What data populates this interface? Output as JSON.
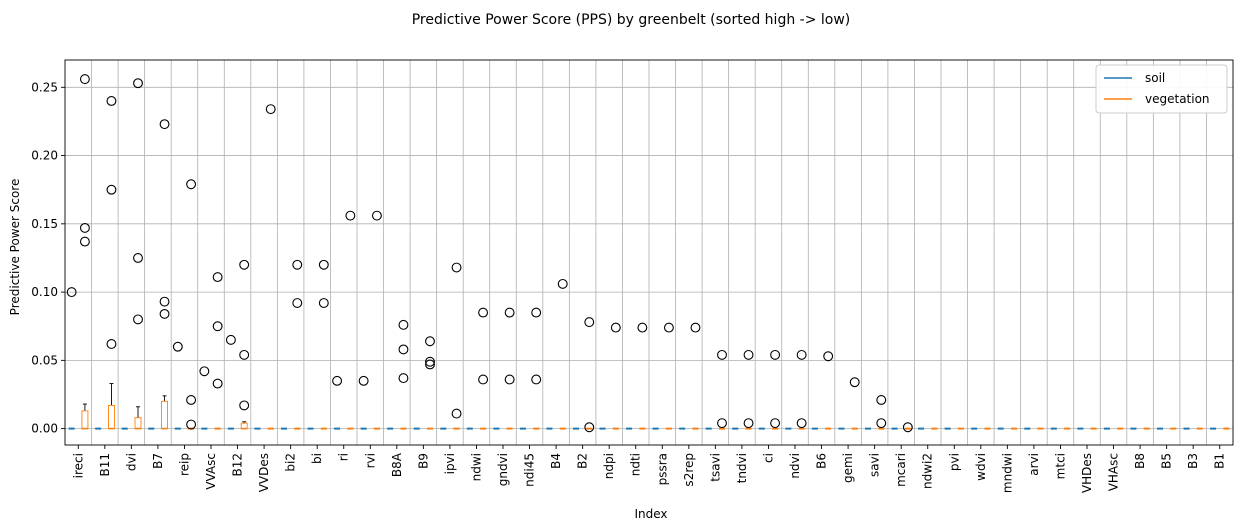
{
  "chart_data": {
    "type": "boxplot",
    "title": "Predictive Power Score (PPS) by greenbelt (sorted high -> low)",
    "xlabel": "Index",
    "ylabel": "Predictive Power Score",
    "ylim": [
      -0.012,
      0.27
    ],
    "yticks": [
      0.0,
      0.05,
      0.1,
      0.15,
      0.2,
      0.25
    ],
    "ytick_labels": [
      "0.00",
      "0.05",
      "0.10",
      "0.15",
      "0.20",
      "0.25"
    ],
    "grid": true,
    "legend_position": "top-right",
    "categories": [
      "ireci",
      "B11",
      "dvi",
      "B7",
      "reip",
      "VVAsc",
      "B12",
      "VVDes",
      "bi2",
      "bi",
      "ri",
      "rvi",
      "B8A",
      "B9",
      "ipvi",
      "ndwi",
      "gndvi",
      "ndi45",
      "B4",
      "B2",
      "ndpi",
      "ndti",
      "pssra",
      "s2rep",
      "tsavi",
      "tndvi",
      "ci",
      "ndvi",
      "B6",
      "gemi",
      "savi",
      "mcari",
      "ndwi2",
      "pvi",
      "wdvi",
      "mndwi",
      "arvi",
      "mtci",
      "VHDes",
      "VHAsc",
      "B8",
      "B5",
      "B3",
      "B1"
    ],
    "series": [
      {
        "name": "soil",
        "color": "#1f77b4",
        "outliers": [
          [
            0.1
          ],
          [],
          [],
          [],
          [
            0.06
          ],
          [
            0.042
          ],
          [
            0.065
          ],
          [],
          [],
          [],
          [
            0.035
          ],
          [
            0.035
          ],
          [],
          [],
          [],
          [],
          [],
          [],
          [],
          [],
          [],
          [],
          [],
          [],
          [],
          [],
          [],
          [],
          [],
          [],
          [],
          [],
          [],
          [],
          [],
          [],
          [],
          [],
          [],
          [],
          [],
          [],
          [],
          []
        ]
      },
      {
        "name": "vegetation",
        "color": "#ff7f0e",
        "boxes": [
          [
            0,
            0,
            0,
            0.013,
            0.018
          ],
          [
            0,
            0,
            0,
            0.017,
            0.033
          ],
          [
            0,
            0,
            0,
            0.008,
            0.016
          ],
          [
            0,
            0,
            0,
            0.02,
            0.024
          ],
          null,
          null,
          [
            0,
            0,
            0,
            0.004,
            0.005
          ],
          null,
          null,
          null,
          null,
          null,
          null,
          null,
          null,
          null,
          null,
          null,
          null,
          null,
          null,
          null,
          null,
          null,
          null,
          null,
          null,
          null,
          null,
          null,
          null,
          null,
          null,
          null,
          null,
          null,
          null,
          null,
          null,
          null,
          null,
          null,
          null,
          null
        ],
        "outliers": [
          [
            0.256,
            0.147,
            0.137
          ],
          [
            0.24,
            0.175,
            0.062
          ],
          [
            0.253,
            0.125,
            0.08
          ],
          [
            0.223,
            0.093,
            0.084
          ],
          [
            0.179,
            0.021,
            0.003
          ],
          [
            0.111,
            0.075,
            0.033
          ],
          [
            0.12,
            0.054,
            0.017
          ],
          [
            0.234
          ],
          [
            0.12,
            0.092
          ],
          [
            0.12,
            0.092
          ],
          [
            0.156
          ],
          [
            0.156
          ],
          [
            0.076,
            0.058,
            0.037
          ],
          [
            0.064,
            0.049,
            0.047
          ],
          [
            0.118,
            0.011
          ],
          [
            0.085,
            0.036
          ],
          [
            0.085,
            0.036
          ],
          [
            0.085,
            0.036
          ],
          [
            0.106
          ],
          [
            0.078,
            0.001
          ],
          [
            0.074
          ],
          [
            0.074
          ],
          [
            0.074
          ],
          [
            0.074
          ],
          [
            0.054,
            0.004
          ],
          [
            0.054,
            0.004
          ],
          [
            0.054,
            0.004
          ],
          [
            0.054,
            0.004
          ],
          [
            0.053
          ],
          [
            0.034
          ],
          [
            0.021,
            0.004
          ],
          [
            0.001
          ],
          [],
          [],
          [],
          [],
          [],
          [],
          [],
          [],
          [],
          [],
          [],
          []
        ]
      }
    ]
  }
}
